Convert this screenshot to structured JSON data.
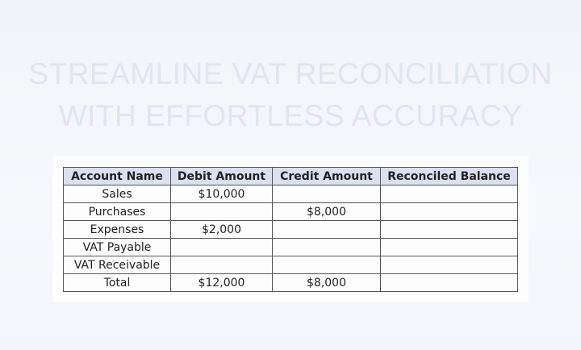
{
  "title": {
    "line1": "STREAMLINE VAT RECONCILIATION",
    "line2": "WITH EFFORTLESS ACCURACY"
  },
  "table": {
    "headers": [
      "Account Name",
      "Debit Amount",
      "Credit Amount",
      "Reconciled Balance"
    ],
    "rows": [
      [
        "Sales",
        "$10,000",
        "",
        ""
      ],
      [
        "Purchases",
        "",
        "$8,000",
        ""
      ],
      [
        "Expenses",
        "$2,000",
        "",
        ""
      ],
      [
        "VAT Payable",
        "",
        "",
        ""
      ],
      [
        "VAT Receivable",
        "",
        "",
        ""
      ],
      [
        "Total",
        "$12,000",
        "$8,000",
        ""
      ]
    ]
  },
  "colors": {
    "header_bg": "#d9e1f2",
    "title": "#e1e6f0",
    "border": "#555555"
  }
}
